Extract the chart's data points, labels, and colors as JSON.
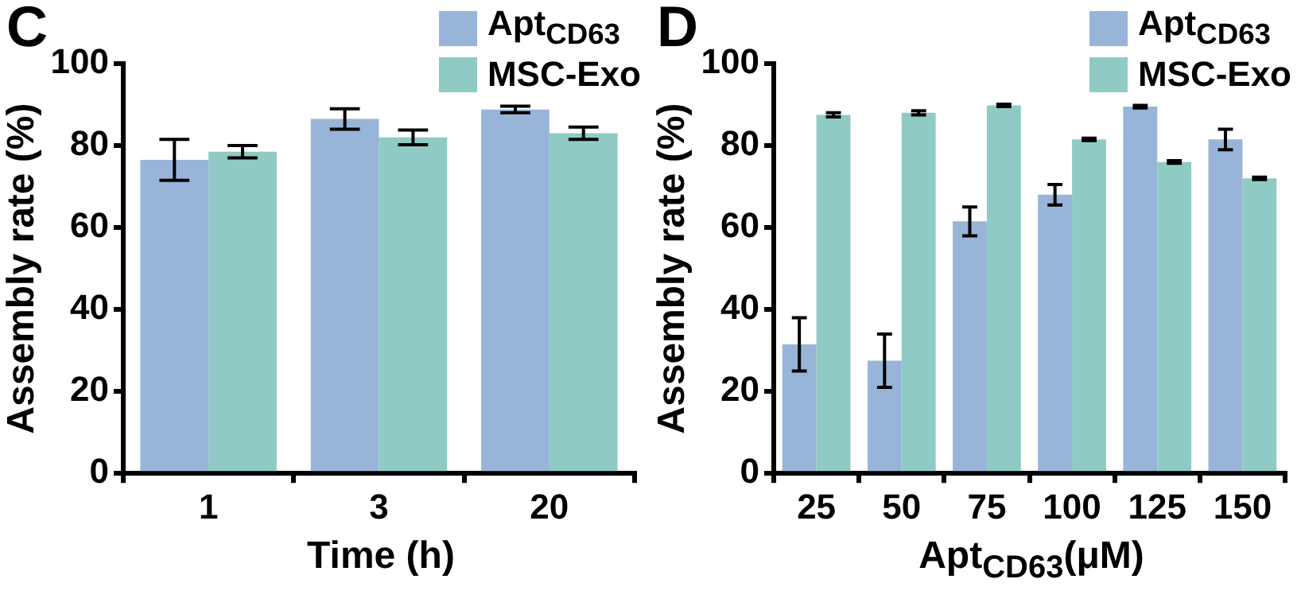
{
  "chart_data": [
    {
      "type": "bar",
      "title": "C",
      "xlabel": "Time (h)",
      "ylabel": "Assembly rate (%)",
      "categories": [
        "1",
        "3",
        "20"
      ],
      "series": [
        {
          "name": "Apt$_{CD63}$",
          "color": "#98b4d9",
          "values": [
            76.5,
            86.5,
            88.8
          ],
          "errors": [
            5,
            2.5,
            0.8
          ]
        },
        {
          "name": "MSC-Exo",
          "color": "#8fcbc4",
          "values": [
            78.5,
            82,
            83
          ],
          "errors": [
            1.5,
            1.8,
            1.5
          ]
        }
      ],
      "ylim": [
        0,
        100
      ],
      "yticks": [
        0,
        20,
        40,
        60,
        80,
        100
      ],
      "legend": "top right"
    },
    {
      "type": "bar",
      "title": "D",
      "xlabel": "Apt$_{CD63}$(μM)",
      "ylabel": "Assembly rate (%)",
      "categories": [
        "25",
        "50",
        "75",
        "100",
        "125",
        "150"
      ],
      "series": [
        {
          "name": "Apt$_{CD63}$",
          "color": "#98b4d9",
          "values": [
            31.5,
            27.5,
            61.5,
            68,
            89.5,
            81.5
          ],
          "errors": [
            6.5,
            6.5,
            3.5,
            2.5,
            0.3,
            2.5
          ]
        },
        {
          "name": "MSC-Exo",
          "color": "#8fcbc4",
          "values": [
            87.5,
            88,
            89.8,
            81.5,
            76,
            72
          ],
          "errors": [
            0.5,
            0.5,
            0.3,
            0.3,
            0.3,
            0.3
          ]
        }
      ],
      "ylim": [
        0,
        100
      ],
      "yticks": [
        0,
        20,
        40,
        60,
        80,
        100
      ],
      "legend": "top right"
    }
  ]
}
